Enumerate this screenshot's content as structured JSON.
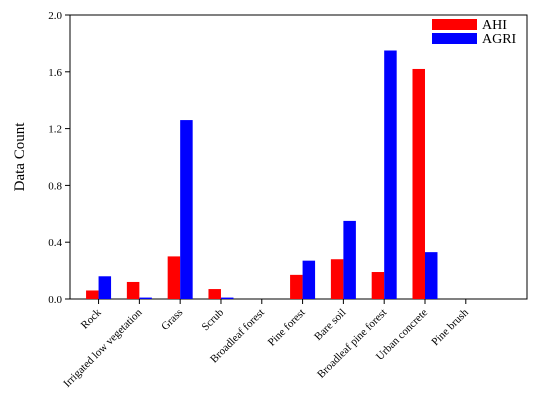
{
  "chart_data": {
    "type": "bar",
    "title": "",
    "xlabel": "",
    "ylabel": "Data Count",
    "ylim": [
      0,
      2.0
    ],
    "yticks": [
      "0.0",
      "0.4",
      "0.8",
      "1.2",
      "1.6",
      "2.0"
    ],
    "grid": false,
    "legend_position": "top-right",
    "categories": [
      "Rock",
      "Irrigated low vegetation",
      "Grass",
      "Scrub",
      "Broadleaf forest",
      "Pine forest",
      "Bare soil",
      "Broadleaf pine forest",
      "Urban concrete",
      "Pine brush"
    ],
    "series": [
      {
        "name": "AHI",
        "color": "#ff0000",
        "values": [
          0.06,
          0.12,
          0.3,
          0.07,
          0.0,
          0.17,
          0.28,
          0.19,
          1.62,
          0.0
        ]
      },
      {
        "name": "AGRI",
        "color": "#0000ff",
        "values": [
          0.16,
          0.01,
          1.26,
          0.01,
          0.0,
          0.27,
          0.55,
          1.75,
          0.33,
          0.0
        ]
      }
    ]
  }
}
